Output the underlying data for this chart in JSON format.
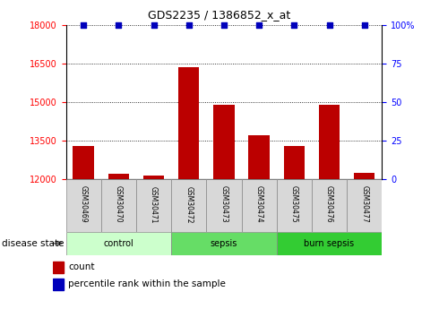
{
  "title": "GDS2235 / 1386852_x_at",
  "samples": [
    "GSM30469",
    "GSM30470",
    "GSM30471",
    "GSM30472",
    "GSM30473",
    "GSM30474",
    "GSM30475",
    "GSM30476",
    "GSM30477"
  ],
  "counts": [
    13300,
    12200,
    12150,
    16350,
    14900,
    13700,
    13300,
    14900,
    12250
  ],
  "percentiles": [
    100,
    100,
    100,
    100,
    100,
    100,
    100,
    100,
    100
  ],
  "groups": [
    {
      "label": "control",
      "count": 3,
      "color": "#ccffcc"
    },
    {
      "label": "sepsis",
      "count": 3,
      "color": "#66dd66"
    },
    {
      "label": "burn sepsis",
      "count": 3,
      "color": "#33cc33"
    }
  ],
  "ylim_left": [
    12000,
    18000
  ],
  "ylim_right": [
    0,
    100
  ],
  "yticks_left": [
    12000,
    13500,
    15000,
    16500,
    18000
  ],
  "yticks_right": [
    0,
    25,
    50,
    75,
    100
  ],
  "bar_color": "#bb0000",
  "dot_color": "#0000bb",
  "bar_width": 0.6,
  "legend_count_label": "count",
  "legend_pct_label": "percentile rank within the sample",
  "disease_state_label": "disease state"
}
